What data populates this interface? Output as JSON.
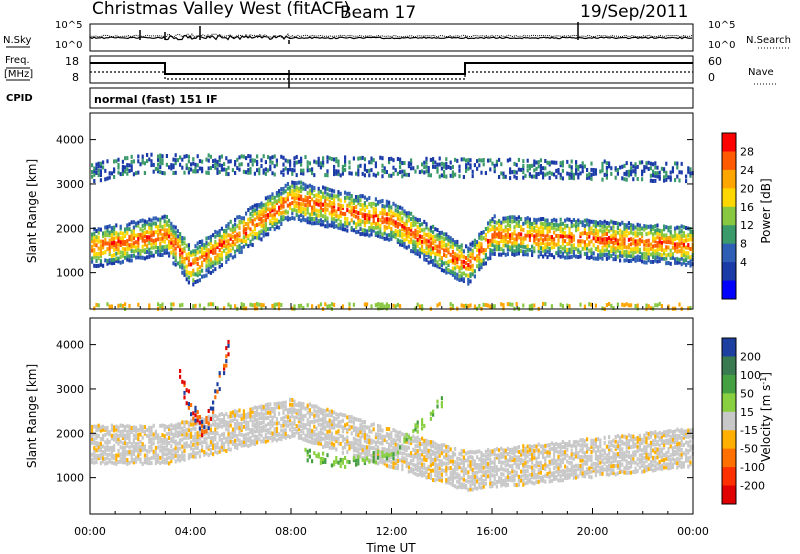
{
  "header": {
    "station": "Christmas Valley West (fitACF)",
    "beam": "Beam 17",
    "date": "19/Sep/2011"
  },
  "status_panels": {
    "nsky_label": "N.Sky",
    "nsky_ticks": [
      "10^5",
      "10^0"
    ],
    "nsearch_label": "N.Search",
    "nsearch_ticks": [
      "10^5",
      "10^0"
    ],
    "freq_label_1": "Freq.",
    "freq_label_2": "[MHz]",
    "freq_ticks": [
      "18",
      "8"
    ],
    "nave_label": "Nave",
    "nave_ticks": [
      "60",
      "0"
    ],
    "cpid_label": "CPID",
    "cpid_value": "normal (fast) 151 IF"
  },
  "colorbars": {
    "power": {
      "label": "Power [dB]",
      "ticks": [
        "28",
        "24",
        "20",
        "16",
        "12",
        "8",
        "4"
      ],
      "colors": [
        "#ff0000",
        "#ff5a00",
        "#ffa500",
        "#ffd700",
        "#88c840",
        "#3a9a6a",
        "#2e5fb4",
        "#1a3aa8",
        "#0000ff"
      ]
    },
    "velocity": {
      "label": "Velocity [m s",
      "label_sup": "-1",
      "label_end": "]",
      "ticks": [
        "200",
        "100",
        "50",
        "15",
        "-15",
        "-50",
        "-100",
        "-200"
      ],
      "colors": [
        "#1c3fa0",
        "#3a7a50",
        "#44a040",
        "#88d040",
        "#c8c8c8",
        "#ffb000",
        "#ff7000",
        "#ff3000",
        "#e00000"
      ]
    }
  },
  "x_axis": {
    "title": "Time UT",
    "ticks": [
      "00:00",
      "04:00",
      "08:00",
      "12:00",
      "16:00",
      "20:00",
      "00:00"
    ]
  },
  "chart_data": [
    {
      "type": "heatmap",
      "panel": "power",
      "ylabel": "Slant Range [km]",
      "yticks": [
        "4000",
        "3000",
        "2000",
        "1000"
      ],
      "xlim": [
        0,
        24
      ],
      "ylim": [
        180,
        4600
      ],
      "colorbar_range": [
        0,
        30
      ],
      "features": [
        {
          "region": "primary echo band",
          "times_h": [
            0,
            3,
            4,
            8,
            12,
            15,
            16,
            20,
            24
          ],
          "range_km": [
            1600,
            1900,
            1200,
            2700,
            2200,
            1200,
            1900,
            1800,
            1650
          ]
        },
        {
          "region": "far echo band",
          "times_h": [
            0,
            2,
            15.5,
            24
          ],
          "range_km": [
            3300,
            3500,
            3400,
            3300
          ]
        },
        {
          "region": "near ground scatter",
          "times_h": [
            0,
            24
          ],
          "range_km": [
            250,
            250
          ]
        }
      ]
    },
    {
      "type": "heatmap",
      "panel": "velocity",
      "ylabel": "Slant Range [km]",
      "yticks": [
        "4000",
        "3000",
        "2000",
        "1000"
      ],
      "xlim": [
        0,
        24
      ],
      "ylim": [
        180,
        4600
      ],
      "colorbar_range": [
        -250,
        250
      ],
      "features": [
        {
          "region": "ground scatter (low velocity)",
          "times_h": [
            0,
            3,
            8,
            15,
            24
          ],
          "range_km": [
            1800,
            1800,
            2400,
            1200,
            1750
          ]
        },
        {
          "region": "westward flow",
          "times_h": [
            3.5,
            4.5,
            5.5
          ],
          "range_km": [
            3300,
            2000,
            4000
          ]
        },
        {
          "region": "eastward flow",
          "times_h": [
            8.5,
            10,
            12,
            14
          ],
          "range_km": [
            1600,
            1400,
            1600,
            2800
          ]
        }
      ]
    }
  ]
}
